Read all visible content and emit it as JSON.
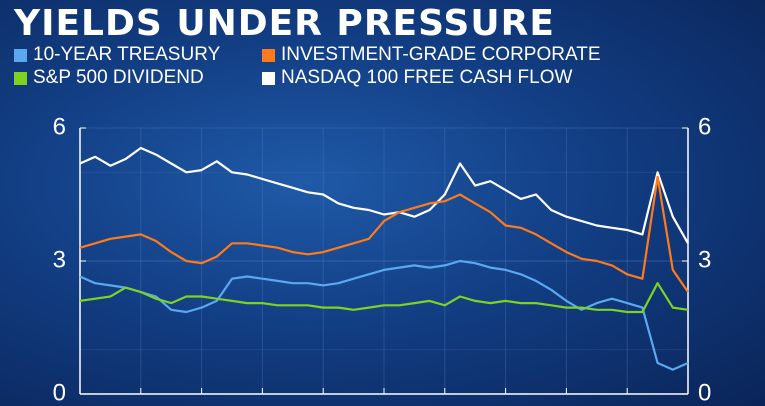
{
  "title": "YIELDS UNDER PRESSURE",
  "colors": {
    "treasury": "#5aa8f0",
    "corporate": "#ff7a1a",
    "dividend": "#7ed321",
    "nasdaq": "#ffffff"
  },
  "chart_data": {
    "type": "line",
    "ylim": [
      0,
      6
    ],
    "y_ticks": [
      "0",
      "3",
      "6"
    ],
    "legend_placement": "top",
    "grid": true,
    "x": [
      0,
      1,
      2,
      3,
      4,
      5,
      6,
      7,
      8,
      9,
      10,
      11,
      12,
      13,
      14,
      15,
      16,
      17,
      18,
      19,
      20,
      21,
      22,
      23,
      24,
      25,
      26,
      27,
      28,
      29,
      30,
      31,
      32,
      33,
      34,
      35,
      36,
      37,
      38,
      39,
      40
    ],
    "series": [
      {
        "name": "10-YEAR TREASURY",
        "color_key": "treasury",
        "values": [
          2.65,
          2.5,
          2.45,
          2.4,
          2.3,
          2.2,
          1.9,
          1.85,
          1.95,
          2.1,
          2.6,
          2.65,
          2.6,
          2.55,
          2.5,
          2.5,
          2.45,
          2.5,
          2.6,
          2.7,
          2.8,
          2.85,
          2.9,
          2.85,
          2.9,
          3.0,
          2.95,
          2.85,
          2.8,
          2.7,
          2.55,
          2.35,
          2.1,
          1.9,
          2.05,
          2.15,
          2.05,
          1.95,
          0.7,
          0.55,
          0.7
        ]
      },
      {
        "name": "INVESTMENT-GRADE CORPORATE",
        "color_key": "corporate",
        "values": [
          3.3,
          3.4,
          3.5,
          3.55,
          3.6,
          3.45,
          3.2,
          3.0,
          2.95,
          3.1,
          3.4,
          3.4,
          3.35,
          3.3,
          3.2,
          3.15,
          3.2,
          3.3,
          3.4,
          3.5,
          3.9,
          4.1,
          4.2,
          4.3,
          4.35,
          4.5,
          4.3,
          4.1,
          3.8,
          3.75,
          3.6,
          3.4,
          3.2,
          3.05,
          3.0,
          2.9,
          2.7,
          2.6,
          4.9,
          2.8,
          2.3
        ]
      },
      {
        "name": "S&P 500 DIVIDEND",
        "color_key": "dividend",
        "values": [
          2.1,
          2.15,
          2.2,
          2.4,
          2.3,
          2.15,
          2.05,
          2.2,
          2.2,
          2.15,
          2.1,
          2.05,
          2.05,
          2.0,
          2.0,
          2.0,
          1.95,
          1.95,
          1.9,
          1.95,
          2.0,
          2.0,
          2.05,
          2.1,
          2.0,
          2.2,
          2.1,
          2.05,
          2.1,
          2.05,
          2.05,
          2.0,
          1.95,
          1.95,
          1.9,
          1.9,
          1.85,
          1.85,
          2.5,
          1.95,
          1.9
        ]
      },
      {
        "name": "NASDAQ 100 FREE CASH FLOW",
        "color_key": "nasdaq",
        "values": [
          5.2,
          5.35,
          5.15,
          5.3,
          5.55,
          5.4,
          5.2,
          5.0,
          5.05,
          5.25,
          5.0,
          4.95,
          4.85,
          4.75,
          4.65,
          4.55,
          4.5,
          4.3,
          4.2,
          4.15,
          4.05,
          4.1,
          4.0,
          4.15,
          4.5,
          5.2,
          4.7,
          4.8,
          4.6,
          4.4,
          4.5,
          4.15,
          4.0,
          3.9,
          3.8,
          3.75,
          3.7,
          3.6,
          5.0,
          4.0,
          3.4
        ]
      }
    ]
  }
}
